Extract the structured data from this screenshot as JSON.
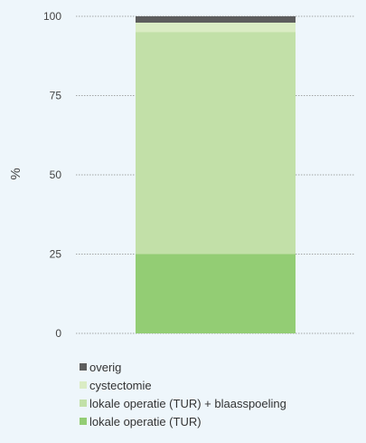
{
  "chart_data": {
    "type": "bar",
    "stacked": true,
    "categories": [
      ""
    ],
    "ylabel": "%",
    "ylim": [
      0,
      100
    ],
    "yticks": [
      "0",
      "25",
      "50",
      "75",
      "100"
    ],
    "grid": "dotted-horizontal",
    "legend_position": "bottom-left",
    "series": [
      {
        "name": "lokale operatie (TUR)",
        "values": [
          25
        ],
        "color": "#93cd74"
      },
      {
        "name": "lokale operatie (TUR) + blaasspoeling",
        "values": [
          70
        ],
        "color": "#c2e0a8"
      },
      {
        "name": "cystectomie",
        "values": [
          3
        ],
        "color": "#daecc4"
      },
      {
        "name": "overig",
        "values": [
          2
        ],
        "color": "#5d5d5d"
      }
    ],
    "legend_order": [
      3,
      2,
      1,
      0
    ]
  }
}
